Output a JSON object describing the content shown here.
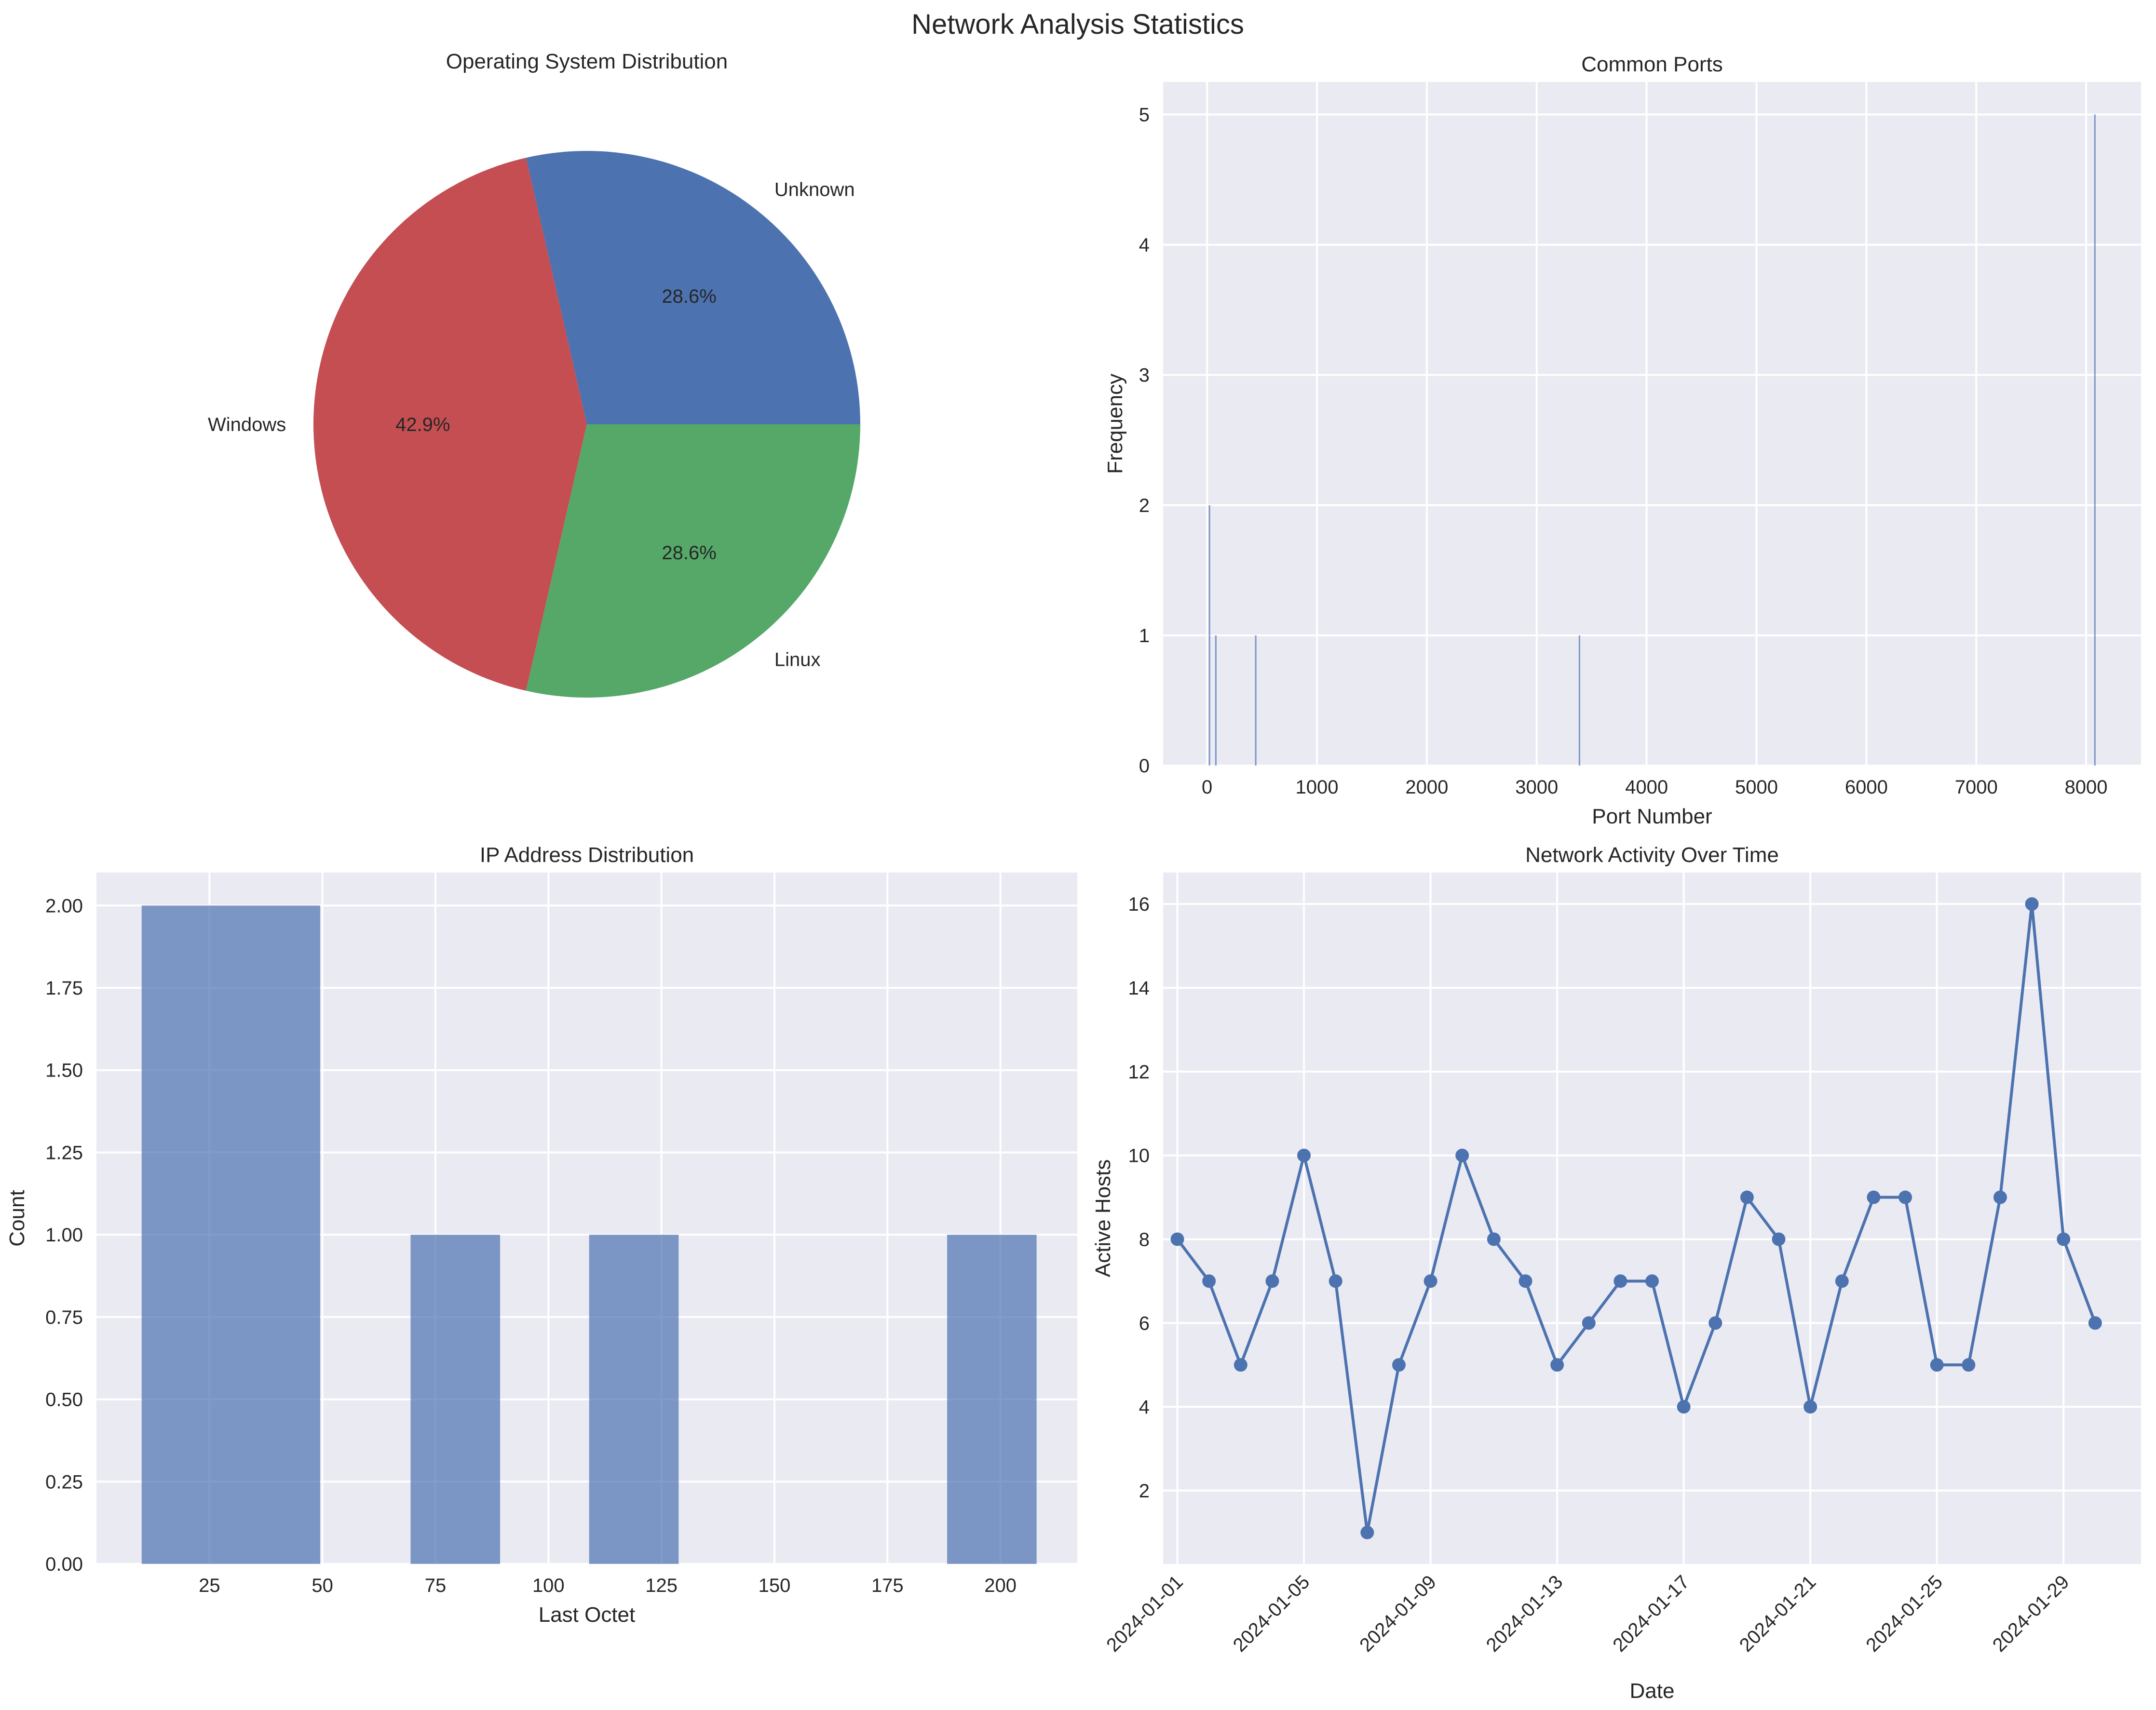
{
  "figure": {
    "title": "Network Analysis Statistics"
  },
  "colors": {
    "axes_bg": "#EAEAF2",
    "grid": "#FFFFFF",
    "blue": "#4C72B0",
    "green": "#55A868",
    "red": "#C44E52",
    "text": "#262626"
  },
  "chart_data": [
    {
      "id": "os",
      "type": "pie",
      "title": "Operating System Distribution",
      "labels": [
        "Unknown",
        "Windows",
        "Linux"
      ],
      "values": [
        2,
        3,
        2
      ],
      "percent_labels": [
        "28.6%",
        "42.9%",
        "28.6%"
      ],
      "colors": [
        "#4C72B0",
        "#C44E52",
        "#55A868"
      ]
    },
    {
      "id": "ports",
      "type": "bar",
      "title": "Common Ports",
      "xlabel": "Port Number",
      "ylabel": "Frequency",
      "xlim": [
        -400,
        8500
      ],
      "ylim": [
        0,
        5.25
      ],
      "xticks": [
        0,
        1000,
        2000,
        3000,
        4000,
        5000,
        6000,
        7000,
        8000
      ],
      "yticks": [
        0,
        1,
        2,
        3,
        4,
        5
      ],
      "bars": [
        {
          "port": 22,
          "count": 2
        },
        {
          "port": 80,
          "count": 1
        },
        {
          "port": 443,
          "count": 1
        },
        {
          "port": 3389,
          "count": 1
        },
        {
          "port": 8080,
          "count": 5
        }
      ]
    },
    {
      "id": "ip",
      "type": "bar",
      "title": "IP Address Distribution",
      "xlabel": "Last Octet",
      "ylabel": "Count",
      "xlim": [
        0,
        217
      ],
      "ylim": [
        0,
        2.1
      ],
      "xticks": [
        25,
        50,
        75,
        100,
        125,
        150,
        175,
        200
      ],
      "yticks": [
        0,
        0.25,
        0.5,
        0.75,
        1.0,
        1.25,
        1.5,
        1.75,
        2.0
      ],
      "ytick_labels": [
        "0.00",
        "0.25",
        "0.50",
        "0.75",
        "1.00",
        "1.25",
        "1.50",
        "1.75",
        "2.00"
      ],
      "bins": [
        {
          "x0": 10,
          "x1": 49.5,
          "count": 2
        },
        {
          "x0": 69.5,
          "x1": 89.3,
          "count": 1
        },
        {
          "x0": 109,
          "x1": 128.8,
          "count": 1
        },
        {
          "x0": 188.2,
          "x1": 208,
          "count": 1
        }
      ]
    },
    {
      "id": "activity",
      "type": "line",
      "title": "Network Activity Over Time",
      "xlabel": "Date",
      "ylabel": "Active Hosts",
      "ylim": [
        0.25,
        16.75
      ],
      "yticks": [
        2,
        4,
        6,
        8,
        10,
        12,
        14,
        16
      ],
      "x_start": "2024-01-01",
      "values": [
        8,
        7,
        5,
        7,
        10,
        7,
        1,
        5,
        7,
        10,
        8,
        7,
        5,
        6,
        7,
        7,
        4,
        6,
        9,
        8,
        4,
        7,
        9,
        9,
        5,
        5,
        9,
        16,
        8,
        6
      ],
      "xtick_labels": [
        "2024-01-01",
        "2024-01-05",
        "2024-01-09",
        "2024-01-13",
        "2024-01-17",
        "2024-01-21",
        "2024-01-25",
        "2024-01-29"
      ],
      "xtick_days": [
        1,
        5,
        9,
        13,
        17,
        21,
        25,
        29
      ]
    }
  ]
}
